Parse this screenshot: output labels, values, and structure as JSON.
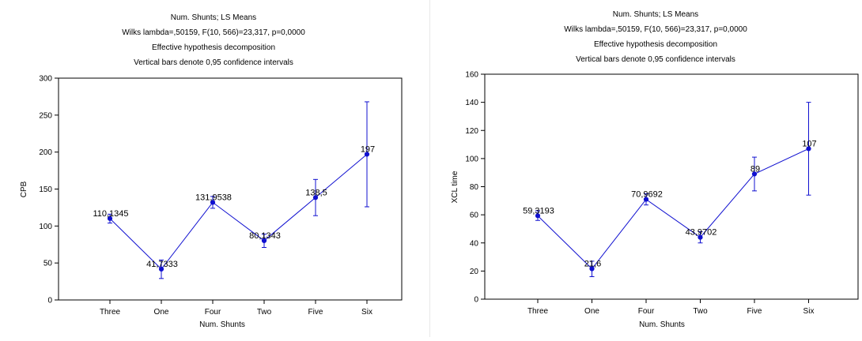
{
  "charts": [
    {
      "title": "Num. Shunts; LS Means",
      "subtitle_1": "Wilks lambda=,50159, F(10, 566)=23,317, p=0,0000",
      "subtitle_2": "Effective hypothesis decomposition",
      "subtitle_3": "Vertical bars denote 0,95 confidence intervals",
      "xlabel": "Num. Shunts",
      "ylabel": "CPB",
      "yticks": [
        "0",
        "50",
        "100",
        "150",
        "200",
        "250",
        "300"
      ]
    },
    {
      "title": "Num. Shunts; LS Means",
      "subtitle_1": "Wilks lambda=,50159, F(10, 566)=23,317, p=0,0000",
      "subtitle_2": "Effective hypothesis decomposition",
      "subtitle_3": "Vertical bars denote 0,95 confidence intervals",
      "xlabel": "Num. Shunts",
      "ylabel": "XCL time",
      "yticks": [
        "0",
        "20",
        "40",
        "60",
        "80",
        "100",
        "120",
        "140",
        "160"
      ]
    }
  ],
  "colors": {
    "series": "#1010d0",
    "axis": "#000000",
    "grid": "#dcdcdc"
  },
  "chart_data": [
    {
      "type": "line",
      "categories": [
        "Three",
        "One",
        "Four",
        "Two",
        "Five",
        "Six"
      ],
      "series": [
        {
          "values": [
            110.1345,
            41.7333,
            131.9538,
            80.1343,
            138.5,
            197
          ],
          "labels": [
            "110,1345",
            "41,7333",
            "131,9538",
            "80,1343",
            "138,5",
            "197"
          ],
          "ci_low": [
            104,
            29,
            124,
            71,
            114,
            126
          ],
          "ci_high": [
            116,
            54,
            140,
            89,
            163,
            268
          ]
        }
      ],
      "ylim": [
        0,
        300
      ],
      "grid": false,
      "error_bars": "0,95 confidence intervals"
    },
    {
      "type": "line",
      "categories": [
        "Three",
        "One",
        "Four",
        "Two",
        "Five",
        "Six"
      ],
      "series": [
        {
          "values": [
            59.3193,
            21.6,
            70.9692,
            43.9702,
            89,
            107
          ],
          "labels": [
            "59,3193",
            "21,6",
            "70,9692",
            "43,9702",
            "89",
            "107"
          ],
          "ci_low": [
            56,
            16,
            67,
            40,
            77,
            74
          ],
          "ci_high": [
            63,
            27,
            75,
            48,
            101,
            140
          ]
        }
      ],
      "ylim": [
        0,
        160
      ],
      "grid": false,
      "error_bars": "0,95 confidence intervals"
    }
  ]
}
